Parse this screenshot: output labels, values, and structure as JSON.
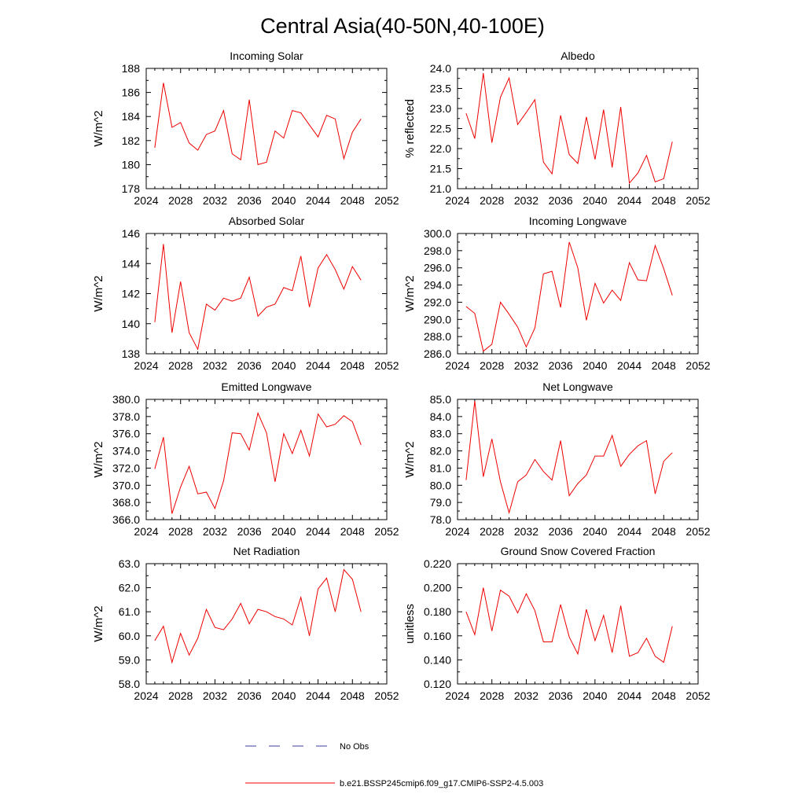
{
  "figure": {
    "title": "Central Asia(40-50N,40-100E)"
  },
  "legend": {
    "entries": [
      {
        "label": "No Obs",
        "color": "#3b3b9e",
        "style": "dashed"
      },
      {
        "label": "b.e21.BSSP245cmip6.f09_g17.CMIP6-SSP2-4.5.003",
        "color": "#ee0000",
        "style": "solid"
      }
    ]
  },
  "chart_data": [
    {
      "type": "line",
      "title": "Incoming Solar",
      "xlabel": "",
      "ylabel": "W/m^2",
      "xlim": [
        2024,
        2052
      ],
      "xticks": [
        2024,
        2028,
        2032,
        2036,
        2040,
        2044,
        2048,
        2052
      ],
      "xticklabels": [
        "2024",
        "2028",
        "2032",
        "2036",
        "2040",
        "2044",
        "2048",
        "2052"
      ],
      "ylim": [
        178,
        188
      ],
      "yticks": [
        178,
        180,
        182,
        184,
        186,
        188
      ],
      "yticklabels": [
        "178",
        "180",
        "182",
        "184",
        "186",
        "188"
      ],
      "series": [
        {
          "name": "b.e21.BSSP245cmip6.f09_g17.CMIP6-SSP2-4.5.003",
          "color": "#ee0000",
          "x": [
            2025,
            2026,
            2027,
            2028,
            2029,
            2030,
            2031,
            2032,
            2033,
            2034,
            2035,
            2036,
            2037,
            2038,
            2039,
            2040,
            2041,
            2042,
            2043,
            2044,
            2045,
            2046,
            2047,
            2048,
            2049
          ],
          "y": [
            181.4,
            186.8,
            183.1,
            183.5,
            181.8,
            181.2,
            182.5,
            182.8,
            184.5,
            180.9,
            180.4,
            185.4,
            180.0,
            180.2,
            182.8,
            182.2,
            184.5,
            184.3,
            183.3,
            182.3,
            184.1,
            183.8,
            180.5,
            182.7,
            183.8
          ]
        }
      ]
    },
    {
      "type": "line",
      "title": "Albedo",
      "xlabel": "",
      "ylabel": "% reflected",
      "xlim": [
        2024,
        2052
      ],
      "xticks": [
        2024,
        2028,
        2032,
        2036,
        2040,
        2044,
        2048,
        2052
      ],
      "xticklabels": [
        "2024",
        "2028",
        "2032",
        "2036",
        "2040",
        "2044",
        "2048",
        "2052"
      ],
      "ylim": [
        21.0,
        24.0
      ],
      "yticks": [
        21.0,
        21.5,
        22.0,
        22.5,
        23.0,
        23.5,
        24.0
      ],
      "yticklabels": [
        "21.0",
        "21.5",
        "22.0",
        "22.5",
        "23.0",
        "23.5",
        "24.0"
      ],
      "series": [
        {
          "name": "b.e21.BSSP245cmip6.f09_g17.CMIP6-SSP2-4.5.003",
          "color": "#ee0000",
          "x": [
            2025,
            2026,
            2027,
            2028,
            2029,
            2030,
            2031,
            2032,
            2033,
            2034,
            2035,
            2036,
            2037,
            2038,
            2039,
            2040,
            2041,
            2042,
            2043,
            2044,
            2045,
            2046,
            2047,
            2048,
            2049
          ],
          "y": [
            22.88,
            22.25,
            23.88,
            22.15,
            23.28,
            23.76,
            22.6,
            22.9,
            23.22,
            21.66,
            21.37,
            22.83,
            21.85,
            21.63,
            22.79,
            21.73,
            22.97,
            21.53,
            23.04,
            21.14,
            21.39,
            21.83,
            21.17,
            21.25,
            22.17
          ]
        }
      ]
    },
    {
      "type": "line",
      "title": "Absorbed Solar",
      "xlabel": "",
      "ylabel": "W/m^2",
      "xlim": [
        2024,
        2052
      ],
      "xticks": [
        2024,
        2028,
        2032,
        2036,
        2040,
        2044,
        2048,
        2052
      ],
      "xticklabels": [
        "2024",
        "2028",
        "2032",
        "2036",
        "2040",
        "2044",
        "2048",
        "2052"
      ],
      "ylim": [
        138,
        146
      ],
      "yticks": [
        138,
        140,
        142,
        144,
        146
      ],
      "yticklabels": [
        "138",
        "140",
        "142",
        "144",
        "146"
      ],
      "series": [
        {
          "name": "b.e21.BSSP245cmip6.f09_g17.CMIP6-SSP2-4.5.003",
          "color": "#ee0000",
          "x": [
            2025,
            2026,
            2027,
            2028,
            2029,
            2030,
            2031,
            2032,
            2033,
            2034,
            2035,
            2036,
            2037,
            2038,
            2039,
            2040,
            2041,
            2042,
            2043,
            2044,
            2045,
            2046,
            2047,
            2048,
            2049
          ],
          "y": [
            140.1,
            145.3,
            139.4,
            142.8,
            139.4,
            138.3,
            141.3,
            140.9,
            141.7,
            141.5,
            141.7,
            143.1,
            140.5,
            141.1,
            141.3,
            142.4,
            142.2,
            144.5,
            141.1,
            143.7,
            144.6,
            143.6,
            142.3,
            143.8,
            142.9
          ]
        }
      ]
    },
    {
      "type": "line",
      "title": "Incoming Longwave",
      "xlabel": "",
      "ylabel": "W/m^2",
      "xlim": [
        2024,
        2052
      ],
      "xticks": [
        2024,
        2028,
        2032,
        2036,
        2040,
        2044,
        2048,
        2052
      ],
      "xticklabels": [
        "2024",
        "2028",
        "2032",
        "2036",
        "2040",
        "2044",
        "2048",
        "2052"
      ],
      "ylim": [
        286.0,
        300.0
      ],
      "yticks": [
        286,
        288,
        290,
        292,
        294,
        296,
        298,
        300
      ],
      "yticklabels": [
        "286.0",
        "288.0",
        "290.0",
        "292.0",
        "294.0",
        "296.0",
        "298.0",
        "300.0"
      ],
      "series": [
        {
          "name": "b.e21.BSSP245cmip6.f09_g17.CMIP6-SSP2-4.5.003",
          "color": "#ee0000",
          "x": [
            2025,
            2026,
            2027,
            2028,
            2029,
            2030,
            2031,
            2032,
            2033,
            2034,
            2035,
            2036,
            2037,
            2038,
            2039,
            2040,
            2041,
            2042,
            2043,
            2044,
            2045,
            2046,
            2047,
            2048,
            2049
          ],
          "y": [
            291.5,
            290.7,
            286.3,
            287.1,
            292.0,
            290.6,
            289.1,
            286.8,
            289.0,
            295.3,
            295.6,
            291.4,
            299.0,
            296.0,
            289.9,
            294.2,
            291.9,
            293.4,
            292.2,
            296.6,
            294.6,
            294.5,
            298.6,
            295.9,
            292.8
          ]
        }
      ]
    },
    {
      "type": "line",
      "title": "Emitted Longwave",
      "xlabel": "",
      "ylabel": "W/m^2",
      "xlim": [
        2024,
        2052
      ],
      "xticks": [
        2024,
        2028,
        2032,
        2036,
        2040,
        2044,
        2048,
        2052
      ],
      "xticklabels": [
        "2024",
        "2028",
        "2032",
        "2036",
        "2040",
        "2044",
        "2048",
        "2052"
      ],
      "ylim": [
        366.0,
        380.0
      ],
      "yticks": [
        366,
        368,
        370,
        372,
        374,
        376,
        378,
        380
      ],
      "yticklabels": [
        "366.0",
        "368.0",
        "370.0",
        "372.0",
        "374.0",
        "376.0",
        "378.0",
        "380.0"
      ],
      "series": [
        {
          "name": "b.e21.BSSP245cmip6.f09_g17.CMIP6-SSP2-4.5.003",
          "color": "#ee0000",
          "x": [
            2025,
            2026,
            2027,
            2028,
            2029,
            2030,
            2031,
            2032,
            2033,
            2034,
            2035,
            2036,
            2037,
            2038,
            2039,
            2040,
            2041,
            2042,
            2043,
            2044,
            2045,
            2046,
            2047,
            2048,
            2049
          ],
          "y": [
            371.9,
            375.6,
            366.7,
            369.8,
            372.2,
            369.0,
            369.2,
            367.3,
            370.5,
            376.1,
            376.0,
            374.1,
            378.4,
            376.1,
            370.4,
            376.0,
            373.7,
            376.4,
            373.4,
            378.3,
            376.8,
            377.1,
            378.1,
            377.4,
            374.7
          ]
        }
      ]
    },
    {
      "type": "line",
      "title": "Net Longwave",
      "xlabel": "",
      "ylabel": "W/m^2",
      "xlim": [
        2024,
        2052
      ],
      "xticks": [
        2024,
        2028,
        2032,
        2036,
        2040,
        2044,
        2048,
        2052
      ],
      "xticklabels": [
        "2024",
        "2028",
        "2032",
        "2036",
        "2040",
        "2044",
        "2048",
        "2052"
      ],
      "ylim": [
        78.0,
        85.0
      ],
      "yticks": [
        78,
        79,
        80,
        81,
        82,
        83,
        84,
        85
      ],
      "yticklabels": [
        "78.0",
        "79.0",
        "80.0",
        "81.0",
        "82.0",
        "83.0",
        "84.0",
        "85.0"
      ],
      "series": [
        {
          "name": "b.e21.BSSP245cmip6.f09_g17.CMIP6-SSP2-4.5.003",
          "color": "#ee0000",
          "x": [
            2025,
            2026,
            2027,
            2028,
            2029,
            2030,
            2031,
            2032,
            2033,
            2034,
            2035,
            2036,
            2037,
            2038,
            2039,
            2040,
            2041,
            2042,
            2043,
            2044,
            2045,
            2046,
            2047,
            2048,
            2049
          ],
          "y": [
            80.3,
            84.9,
            80.5,
            82.7,
            80.2,
            78.4,
            80.2,
            80.6,
            81.5,
            80.8,
            80.3,
            82.6,
            79.4,
            80.1,
            80.6,
            81.7,
            81.7,
            82.9,
            81.1,
            81.8,
            82.3,
            82.6,
            79.5,
            81.4,
            81.9
          ]
        }
      ]
    },
    {
      "type": "line",
      "title": "Net Radiation",
      "xlabel": "",
      "ylabel": "W/m^2",
      "xlim": [
        2024,
        2052
      ],
      "xticks": [
        2024,
        2028,
        2032,
        2036,
        2040,
        2044,
        2048,
        2052
      ],
      "xticklabels": [
        "2024",
        "2028",
        "2032",
        "2036",
        "2040",
        "2044",
        "2048",
        "2052"
      ],
      "ylim": [
        58.0,
        63.0
      ],
      "yticks": [
        58,
        59,
        60,
        61,
        62,
        63
      ],
      "yticklabels": [
        "58.0",
        "59.0",
        "60.0",
        "61.0",
        "62.0",
        "63.0"
      ],
      "series": [
        {
          "name": "b.e21.BSSP245cmip6.f09_g17.CMIP6-SSP2-4.5.003",
          "color": "#ee0000",
          "x": [
            2025,
            2026,
            2027,
            2028,
            2029,
            2030,
            2031,
            2032,
            2033,
            2034,
            2035,
            2036,
            2037,
            2038,
            2039,
            2040,
            2041,
            2042,
            2043,
            2044,
            2045,
            2046,
            2047,
            2048,
            2049
          ],
          "y": [
            59.8,
            60.4,
            58.9,
            60.1,
            59.2,
            59.9,
            61.1,
            60.35,
            60.25,
            60.7,
            61.35,
            60.5,
            61.1,
            61.0,
            60.8,
            60.7,
            60.45,
            61.6,
            60.0,
            61.95,
            62.4,
            61.0,
            62.75,
            62.35,
            61.0
          ]
        }
      ]
    },
    {
      "type": "line",
      "title": "Ground Snow Covered Fraction",
      "xlabel": "",
      "ylabel": "unitless",
      "xlim": [
        2024,
        2052
      ],
      "xticks": [
        2024,
        2028,
        2032,
        2036,
        2040,
        2044,
        2048,
        2052
      ],
      "xticklabels": [
        "2024",
        "2028",
        "2032",
        "2036",
        "2040",
        "2044",
        "2048",
        "2052"
      ],
      "ylim": [
        0.12,
        0.22
      ],
      "yticks": [
        0.12,
        0.14,
        0.16,
        0.18,
        0.2,
        0.22
      ],
      "yticklabels": [
        "0.120",
        "0.140",
        "0.160",
        "0.180",
        "0.200",
        "0.220"
      ],
      "series": [
        {
          "name": "b.e21.BSSP245cmip6.f09_g17.CMIP6-SSP2-4.5.003",
          "color": "#ee0000",
          "x": [
            2025,
            2026,
            2027,
            2028,
            2029,
            2030,
            2031,
            2032,
            2033,
            2034,
            2035,
            2036,
            2037,
            2038,
            2039,
            2040,
            2041,
            2042,
            2043,
            2044,
            2045,
            2046,
            2047,
            2048,
            2049
          ],
          "y": [
            0.18,
            0.161,
            0.2,
            0.164,
            0.198,
            0.193,
            0.179,
            0.195,
            0.181,
            0.155,
            0.155,
            0.186,
            0.159,
            0.145,
            0.182,
            0.156,
            0.177,
            0.146,
            0.185,
            0.143,
            0.146,
            0.158,
            0.143,
            0.138,
            0.168
          ]
        }
      ]
    }
  ]
}
